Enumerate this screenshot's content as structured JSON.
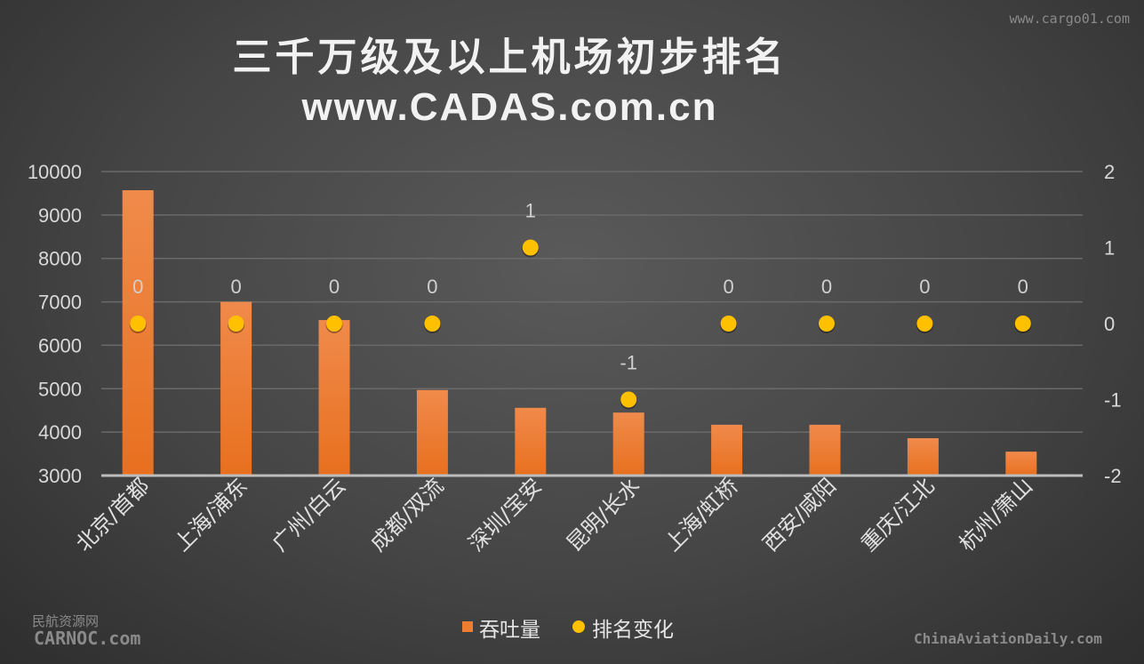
{
  "watermark_top": "www.cargo01.com",
  "watermark_left": {
    "cn": "民航资源网",
    "en": "CARNOC.com"
  },
  "watermark_right": "ChinaAviationDaily.com",
  "chart_data": {
    "type": "bar+scatter",
    "title": "三千万级及以上机场初步排名",
    "subtitle": "www.CADAS.com.cn",
    "categories": [
      "北京/首都",
      "上海/浦东",
      "广州/白云",
      "成都/双流",
      "深圳/宝安",
      "昆明/长水",
      "上海/虹桥",
      "西安/咸阳",
      "重庆/江北",
      "杭州/萧山"
    ],
    "series": [
      {
        "name": "吞吐量",
        "type": "bar",
        "axis": "left",
        "color": "#ed7d31",
        "values": [
          9570,
          7000,
          6580,
          4970,
          4560,
          4450,
          4170,
          4170,
          3860,
          3550
        ]
      },
      {
        "name": "排名变化",
        "type": "scatter",
        "axis": "right",
        "color": "#ffc000",
        "values": [
          0,
          0,
          0,
          0,
          1,
          -1,
          0,
          0,
          0,
          0
        ],
        "data_labels": [
          "0",
          "0",
          "0",
          "0",
          "1",
          "-1",
          "0",
          "0",
          "0",
          "0"
        ]
      }
    ],
    "y_left": {
      "min": 3000,
      "max": 10000,
      "ticks": [
        "3000",
        "4000",
        "5000",
        "6000",
        "7000",
        "8000",
        "9000",
        "10000"
      ]
    },
    "y_right": {
      "min": -2,
      "max": 2,
      "ticks": [
        "-2",
        "-1",
        "0",
        "1",
        "2"
      ]
    },
    "grid": true,
    "legend": "bottom"
  }
}
